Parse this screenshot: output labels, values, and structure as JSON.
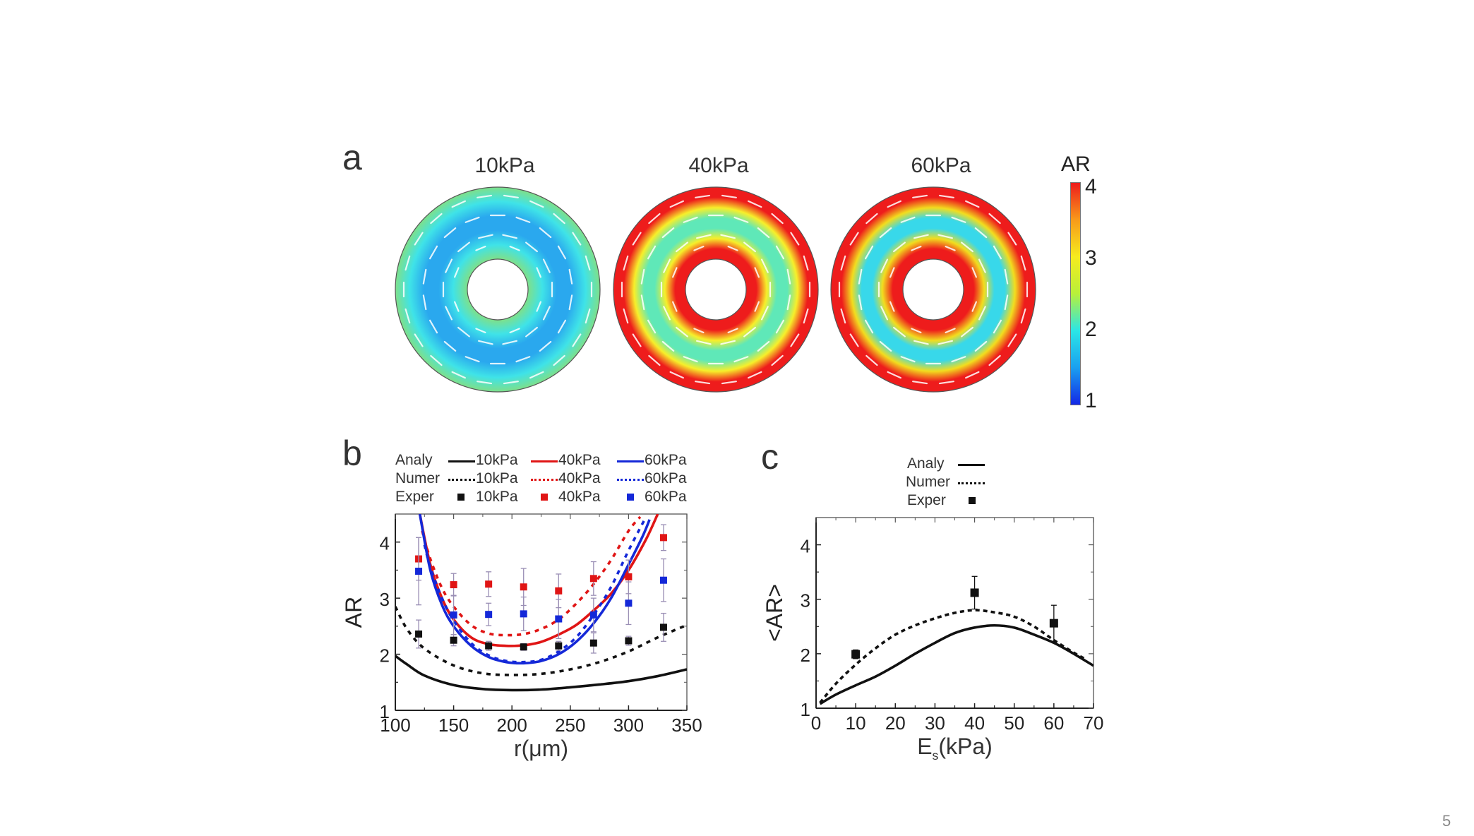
{
  "slide": {
    "page_number": "5"
  },
  "panel_a": {
    "label": "a",
    "rings": [
      {
        "title": "10kPa",
        "stiffness_kPa": 10,
        "profile": "low-AR",
        "colors": [
          "#7ee08a",
          "#3fe3e8",
          "#2aa8ee",
          "#2aa8ee",
          "#3fe3e8",
          "#7ee08a"
        ]
      },
      {
        "title": "40kPa",
        "stiffness_kPa": 40,
        "profile": "high-AR-edges",
        "colors": [
          "#ee1c1c",
          "#ee1c1c",
          "#f7ef2a",
          "#5fe8b8",
          "#5fe8b8",
          "#f7ef2a",
          "#ee1c1c",
          "#ee1c1c"
        ]
      },
      {
        "title": "60kPa",
        "stiffness_kPa": 60,
        "profile": "high-AR-edges",
        "colors": [
          "#ee1c1c",
          "#ee1c1c",
          "#f2dd1e",
          "#38d8ea",
          "#38d8ea",
          "#f2dd1e",
          "#ee1c1c",
          "#ee1c1c"
        ]
      }
    ],
    "colorbar": {
      "label": "AR",
      "ticks": [
        "4",
        "3",
        "2",
        "1"
      ],
      "min": 1,
      "max": 4,
      "stops": [
        "#1428e6",
        "#1aa0f0",
        "#2be6e6",
        "#b8f03a",
        "#f6ec1e",
        "#f89a1a",
        "#ee1c1c"
      ]
    }
  },
  "chart_data": [
    {
      "id": "b",
      "type": "line",
      "panel_label": "b",
      "xlabel": "r(μm)",
      "ylabel": "AR",
      "xlim": [
        100,
        350
      ],
      "ylim": [
        1,
        4.5
      ],
      "xticks": [
        100,
        150,
        200,
        250,
        300,
        350
      ],
      "yticks": [
        1,
        2,
        3,
        4
      ],
      "grid": false,
      "legend": {
        "placement": "top",
        "rows": [
          {
            "label": "Analy",
            "style": "solid",
            "entries": [
              {
                "name": "10kPa",
                "color": "#111111"
              },
              {
                "name": "40kPa",
                "color": "#e01515"
              },
              {
                "name": "60kPa",
                "color": "#1428d8"
              }
            ]
          },
          {
            "label": "Numer",
            "style": "dotted",
            "entries": [
              {
                "name": "10kPa",
                "color": "#111111"
              },
              {
                "name": "40kPa",
                "color": "#e01515"
              },
              {
                "name": "60kPa",
                "color": "#1428d8"
              }
            ]
          },
          {
            "label": "Exper",
            "style": "square",
            "entries": [
              {
                "name": "10kPa",
                "color": "#111111"
              },
              {
                "name": "40kPa",
                "color": "#e01515"
              },
              {
                "name": "60kPa",
                "color": "#1428d8"
              }
            ]
          }
        ]
      },
      "series": [
        {
          "name": "Analy 10kPa",
          "style": "solid",
          "color": "#111111",
          "x": [
            100,
            110,
            125,
            150,
            175,
            200,
            225,
            250,
            275,
            300,
            325,
            350
          ],
          "y": [
            1.97,
            1.82,
            1.62,
            1.45,
            1.38,
            1.36,
            1.37,
            1.41,
            1.46,
            1.52,
            1.61,
            1.73
          ]
        },
        {
          "name": "Numer 10kPa",
          "style": "dotted",
          "color": "#111111",
          "x": [
            100,
            110,
            125,
            150,
            175,
            200,
            225,
            250,
            275,
            300,
            325,
            350
          ],
          "y": [
            2.85,
            2.45,
            2.1,
            1.8,
            1.66,
            1.63,
            1.65,
            1.73,
            1.86,
            2.05,
            2.3,
            2.52
          ]
        },
        {
          "name": "Analy 40kPa",
          "style": "solid",
          "color": "#e01515",
          "x": [
            121,
            130,
            140,
            150,
            165,
            180,
            195,
            210,
            225,
            240,
            255,
            270,
            285,
            300,
            315,
            325
          ],
          "y": [
            4.5,
            3.6,
            3.0,
            2.62,
            2.3,
            2.18,
            2.15,
            2.16,
            2.22,
            2.35,
            2.52,
            2.78,
            3.08,
            3.5,
            4.05,
            4.5
          ]
        },
        {
          "name": "Numer 40kPa",
          "style": "dotted",
          "color": "#e01515",
          "x": [
            123,
            130,
            140,
            150,
            165,
            180,
            195,
            210,
            225,
            240,
            255,
            270,
            285,
            300,
            310
          ],
          "y": [
            4.2,
            3.7,
            3.18,
            2.85,
            2.52,
            2.37,
            2.34,
            2.36,
            2.45,
            2.62,
            2.9,
            3.25,
            3.68,
            4.2,
            4.45
          ]
        },
        {
          "name": "Analy 60kPa",
          "style": "solid",
          "color": "#1428d8",
          "x": [
            121,
            130,
            140,
            150,
            165,
            180,
            195,
            210,
            225,
            240,
            255,
            270,
            285,
            300,
            312,
            318
          ],
          "y": [
            4.5,
            3.5,
            2.88,
            2.5,
            2.15,
            1.95,
            1.86,
            1.84,
            1.88,
            2.0,
            2.22,
            2.55,
            3.0,
            3.6,
            4.1,
            4.4
          ]
        },
        {
          "name": "Numer 60kPa",
          "style": "dotted",
          "color": "#1428d8",
          "x": [
            125,
            130,
            140,
            150,
            165,
            180,
            195,
            210,
            225,
            240,
            255,
            270,
            285,
            300,
            315
          ],
          "y": [
            3.95,
            3.55,
            3.0,
            2.6,
            2.2,
            1.98,
            1.88,
            1.86,
            1.9,
            2.05,
            2.3,
            2.7,
            3.2,
            3.85,
            4.45
          ]
        }
      ],
      "points": [
        {
          "name": "Exper 10kPa",
          "color": "#111111",
          "x": [
            120,
            150,
            180,
            210,
            240,
            270,
            300,
            330
          ],
          "y": [
            2.36,
            2.25,
            2.15,
            2.13,
            2.15,
            2.2,
            2.24,
            2.48
          ],
          "err": [
            0.25,
            0.1,
            0.08,
            0.06,
            0.08,
            0.18,
            0.08,
            0.25
          ]
        },
        {
          "name": "Exper 40kPa",
          "color": "#e01515",
          "x": [
            120,
            150,
            180,
            210,
            240,
            270,
            300,
            330
          ],
          "y": [
            3.7,
            3.24,
            3.25,
            3.2,
            3.13,
            3.35,
            3.38,
            4.08
          ],
          "err": [
            0.38,
            0.2,
            0.22,
            0.33,
            0.3,
            0.3,
            0.3,
            0.23
          ]
        },
        {
          "name": "Exper 60kPa",
          "color": "#1428d8",
          "x": [
            120,
            150,
            180,
            210,
            240,
            270,
            300,
            330
          ],
          "y": [
            3.48,
            2.7,
            2.71,
            2.72,
            2.63,
            2.7,
            2.91,
            3.32
          ],
          "err": [
            0.6,
            0.35,
            0.2,
            0.3,
            0.35,
            0.3,
            0.38,
            0.38
          ]
        }
      ]
    },
    {
      "id": "c",
      "type": "line",
      "panel_label": "c",
      "xlabel_main": "E",
      "xlabel_sub": "s",
      "xlabel_tail": "(kPa)",
      "ylabel": "<AR>",
      "xlim": [
        0,
        70
      ],
      "ylim": [
        1,
        4.5
      ],
      "xticks": [
        0,
        10,
        20,
        30,
        40,
        50,
        60,
        70
      ],
      "yticks": [
        1,
        2,
        3,
        4
      ],
      "grid": false,
      "legend": {
        "placement": "top",
        "rows": [
          {
            "label": "Analy",
            "style": "solid",
            "color": "#111111"
          },
          {
            "label": "Numer",
            "style": "dotted",
            "color": "#111111"
          },
          {
            "label": "Exper",
            "style": "square",
            "color": "#111111"
          }
        ]
      },
      "series": [
        {
          "name": "Analy",
          "style": "solid",
          "color": "#111111",
          "x": [
            1,
            5,
            10,
            15,
            20,
            25,
            30,
            35,
            40,
            45,
            50,
            55,
            60,
            65,
            70
          ],
          "y": [
            1.08,
            1.25,
            1.42,
            1.58,
            1.78,
            2.0,
            2.2,
            2.38,
            2.48,
            2.52,
            2.48,
            2.35,
            2.2,
            2.0,
            1.78
          ]
        },
        {
          "name": "Numer",
          "style": "dotted",
          "color": "#111111",
          "x": [
            1,
            5,
            10,
            15,
            20,
            25,
            30,
            35,
            40,
            45,
            50,
            55,
            60,
            65,
            68
          ],
          "y": [
            1.1,
            1.45,
            1.8,
            2.1,
            2.35,
            2.52,
            2.65,
            2.75,
            2.8,
            2.76,
            2.68,
            2.5,
            2.25,
            2.02,
            1.9
          ]
        }
      ],
      "points": [
        {
          "name": "Exper",
          "color": "#111111",
          "x": [
            10,
            40,
            60
          ],
          "y": [
            1.99,
            3.12,
            2.56
          ],
          "err": [
            0.08,
            0.3,
            0.33
          ]
        }
      ]
    }
  ]
}
